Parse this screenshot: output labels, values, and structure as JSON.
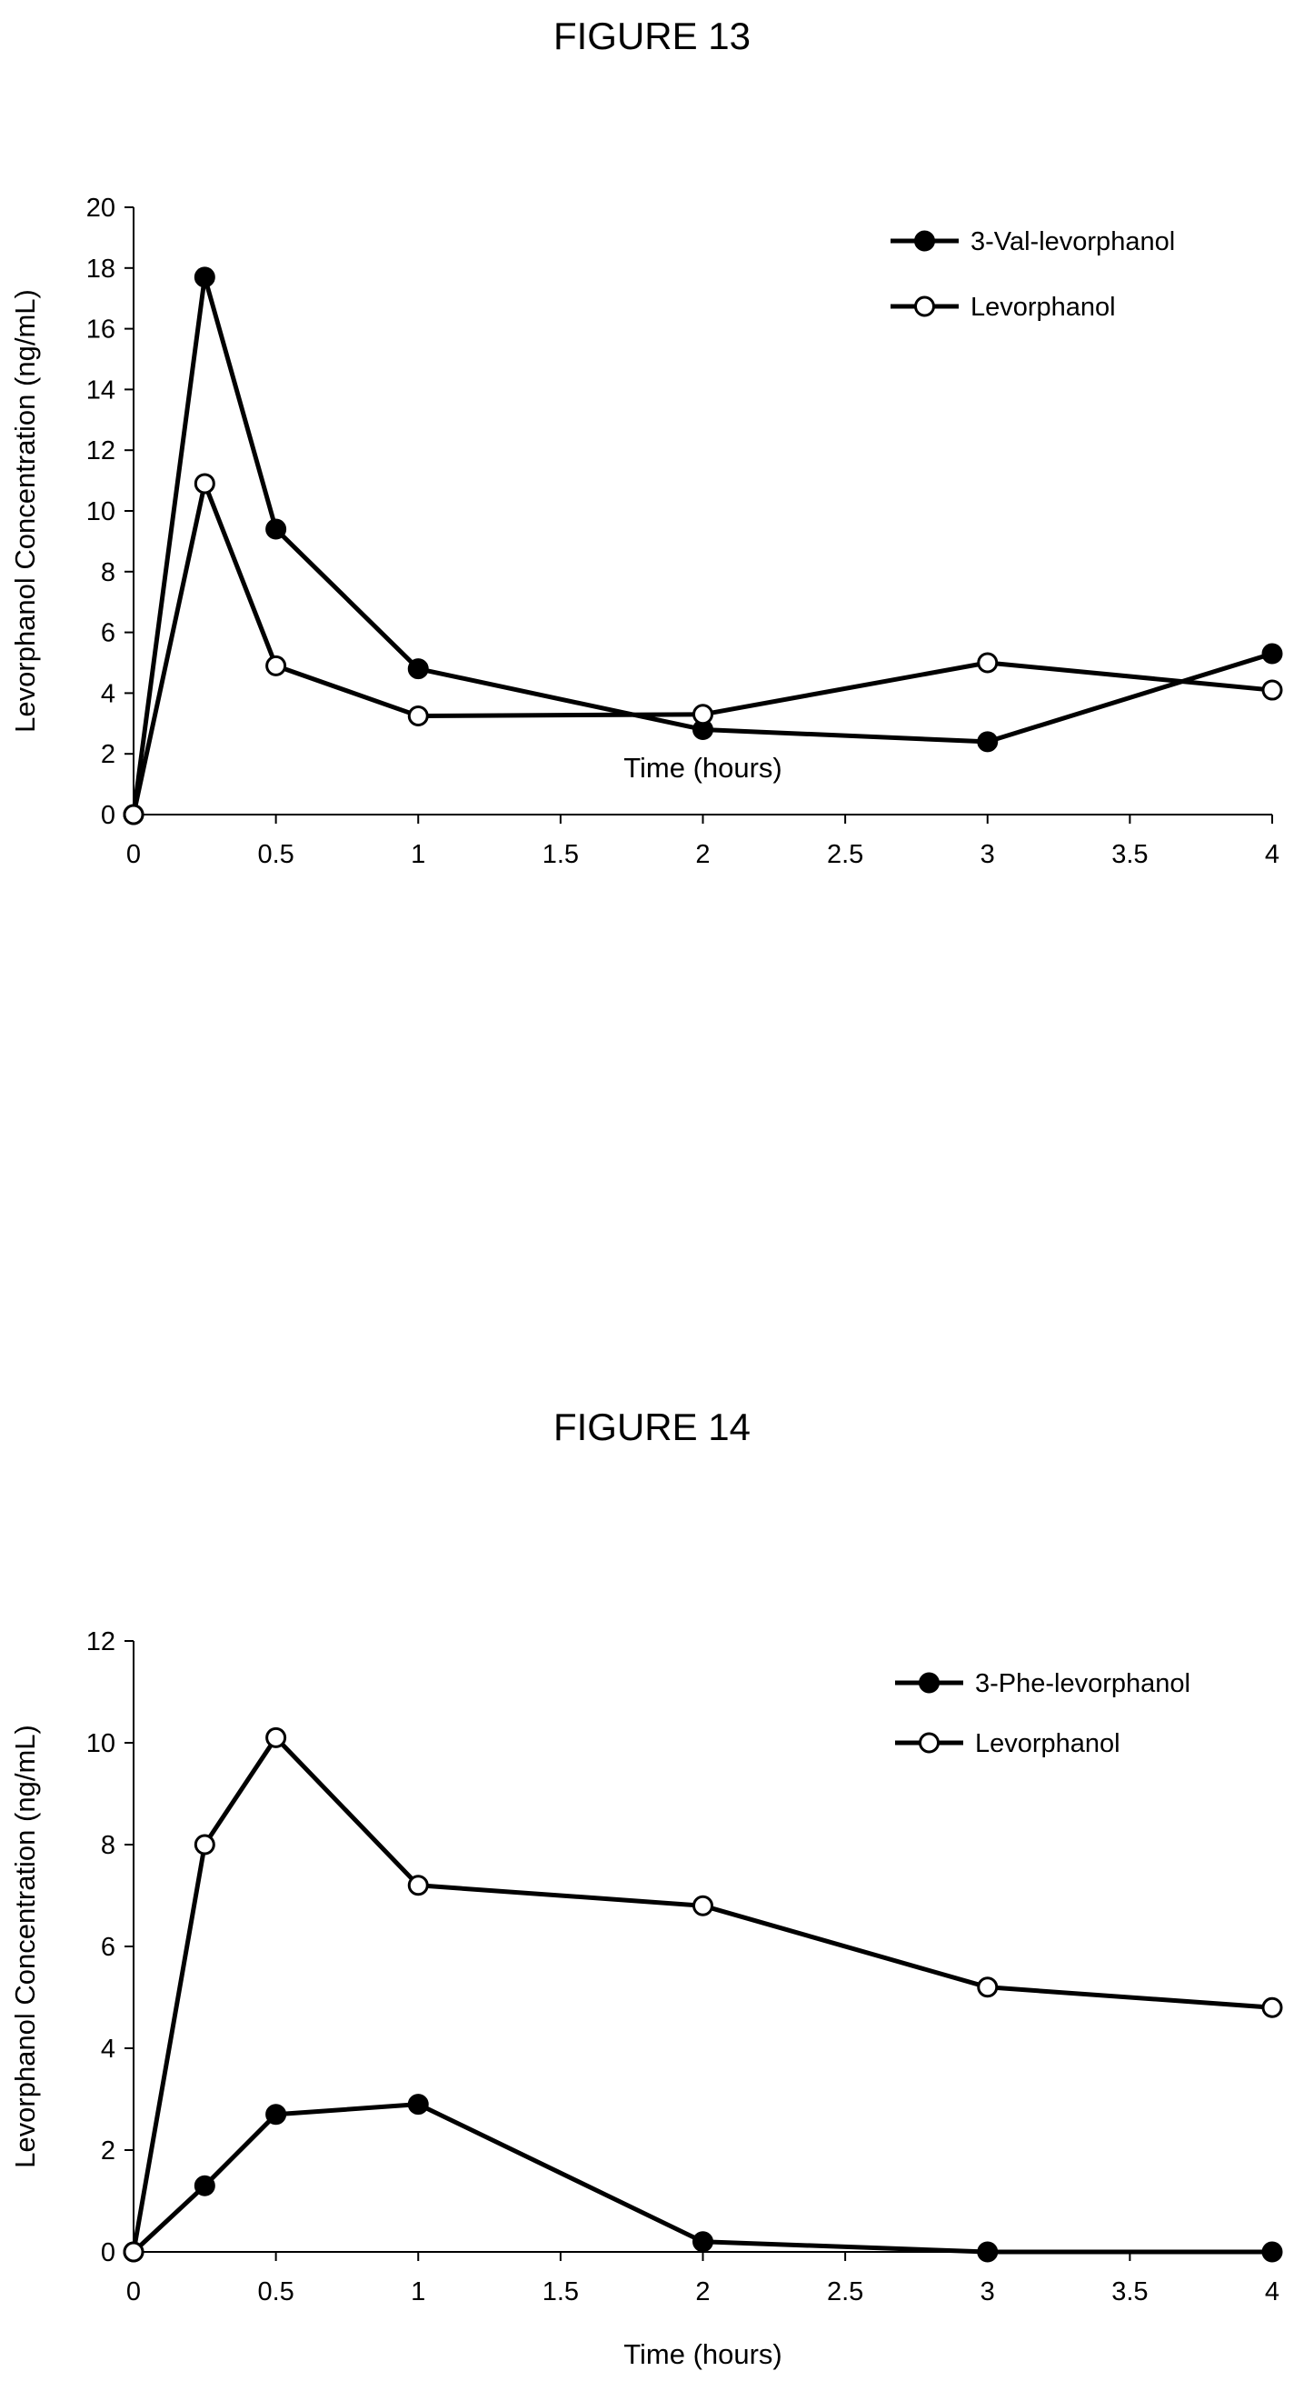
{
  "colors": {
    "line": "#000000",
    "marker_open_fill": "#ffffff",
    "background": "#ffffff"
  },
  "chart_data": [
    {
      "type": "line",
      "title": "FIGURE 13",
      "xlabel": "Time (hours)",
      "ylabel": "Levorphanol Concentration (ng/mL)",
      "xlim": [
        0,
        4
      ],
      "ylim": [
        0,
        20
      ],
      "x_ticks": [
        0,
        0.5,
        1,
        1.5,
        2,
        2.5,
        3,
        3.5,
        4
      ],
      "x_tick_labels": [
        "0",
        "0.5",
        "1",
        "1.5",
        "2",
        "2.5",
        "3",
        "3.5",
        "4"
      ],
      "y_ticks": [
        0,
        2,
        4,
        6,
        8,
        10,
        12,
        14,
        16,
        18,
        20
      ],
      "y_tick_labels": [
        "0",
        "2",
        "4",
        "6",
        "8",
        "10",
        "12",
        "14",
        "16",
        "18",
        "20"
      ],
      "grid": false,
      "legend_position": "top-right",
      "x": [
        0,
        0.25,
        0.5,
        1,
        2,
        3,
        4
      ],
      "series": [
        {
          "name": "3-Val-levorphanol",
          "marker": "filled-circle",
          "values": [
            0,
            17.7,
            9.4,
            4.8,
            2.8,
            2.4,
            5.3
          ]
        },
        {
          "name": "Levorphanol",
          "marker": "open-circle",
          "values": [
            0,
            10.9,
            4.9,
            3.25,
            3.3,
            5.0,
            4.1
          ]
        }
      ]
    },
    {
      "type": "line",
      "title": "FIGURE 14",
      "xlabel": "Time (hours)",
      "ylabel": "Levorphanol Concentration (ng/mL)",
      "xlim": [
        0,
        4
      ],
      "ylim": [
        0,
        12
      ],
      "x_ticks": [
        0,
        0.5,
        1,
        1.5,
        2,
        2.5,
        3,
        3.5,
        4
      ],
      "x_tick_labels": [
        "0",
        "0.5",
        "1",
        "1.5",
        "2",
        "2.5",
        "3",
        "3.5",
        "4"
      ],
      "y_ticks": [
        0,
        2,
        4,
        6,
        8,
        10,
        12
      ],
      "y_tick_labels": [
        "0",
        "2",
        "4",
        "6",
        "8",
        "10",
        "12"
      ],
      "grid": false,
      "legend_position": "top-right",
      "x": [
        0,
        0.25,
        0.5,
        1,
        2,
        3,
        4
      ],
      "series": [
        {
          "name": "3-Phe-levorphanol",
          "marker": "filled-circle",
          "values": [
            0,
            1.3,
            2.7,
            2.9,
            0.2,
            0,
            0
          ]
        },
        {
          "name": "Levorphanol",
          "marker": "open-circle",
          "values": [
            0,
            8.0,
            10.1,
            7.2,
            6.8,
            5.2,
            4.8
          ]
        }
      ]
    }
  ]
}
